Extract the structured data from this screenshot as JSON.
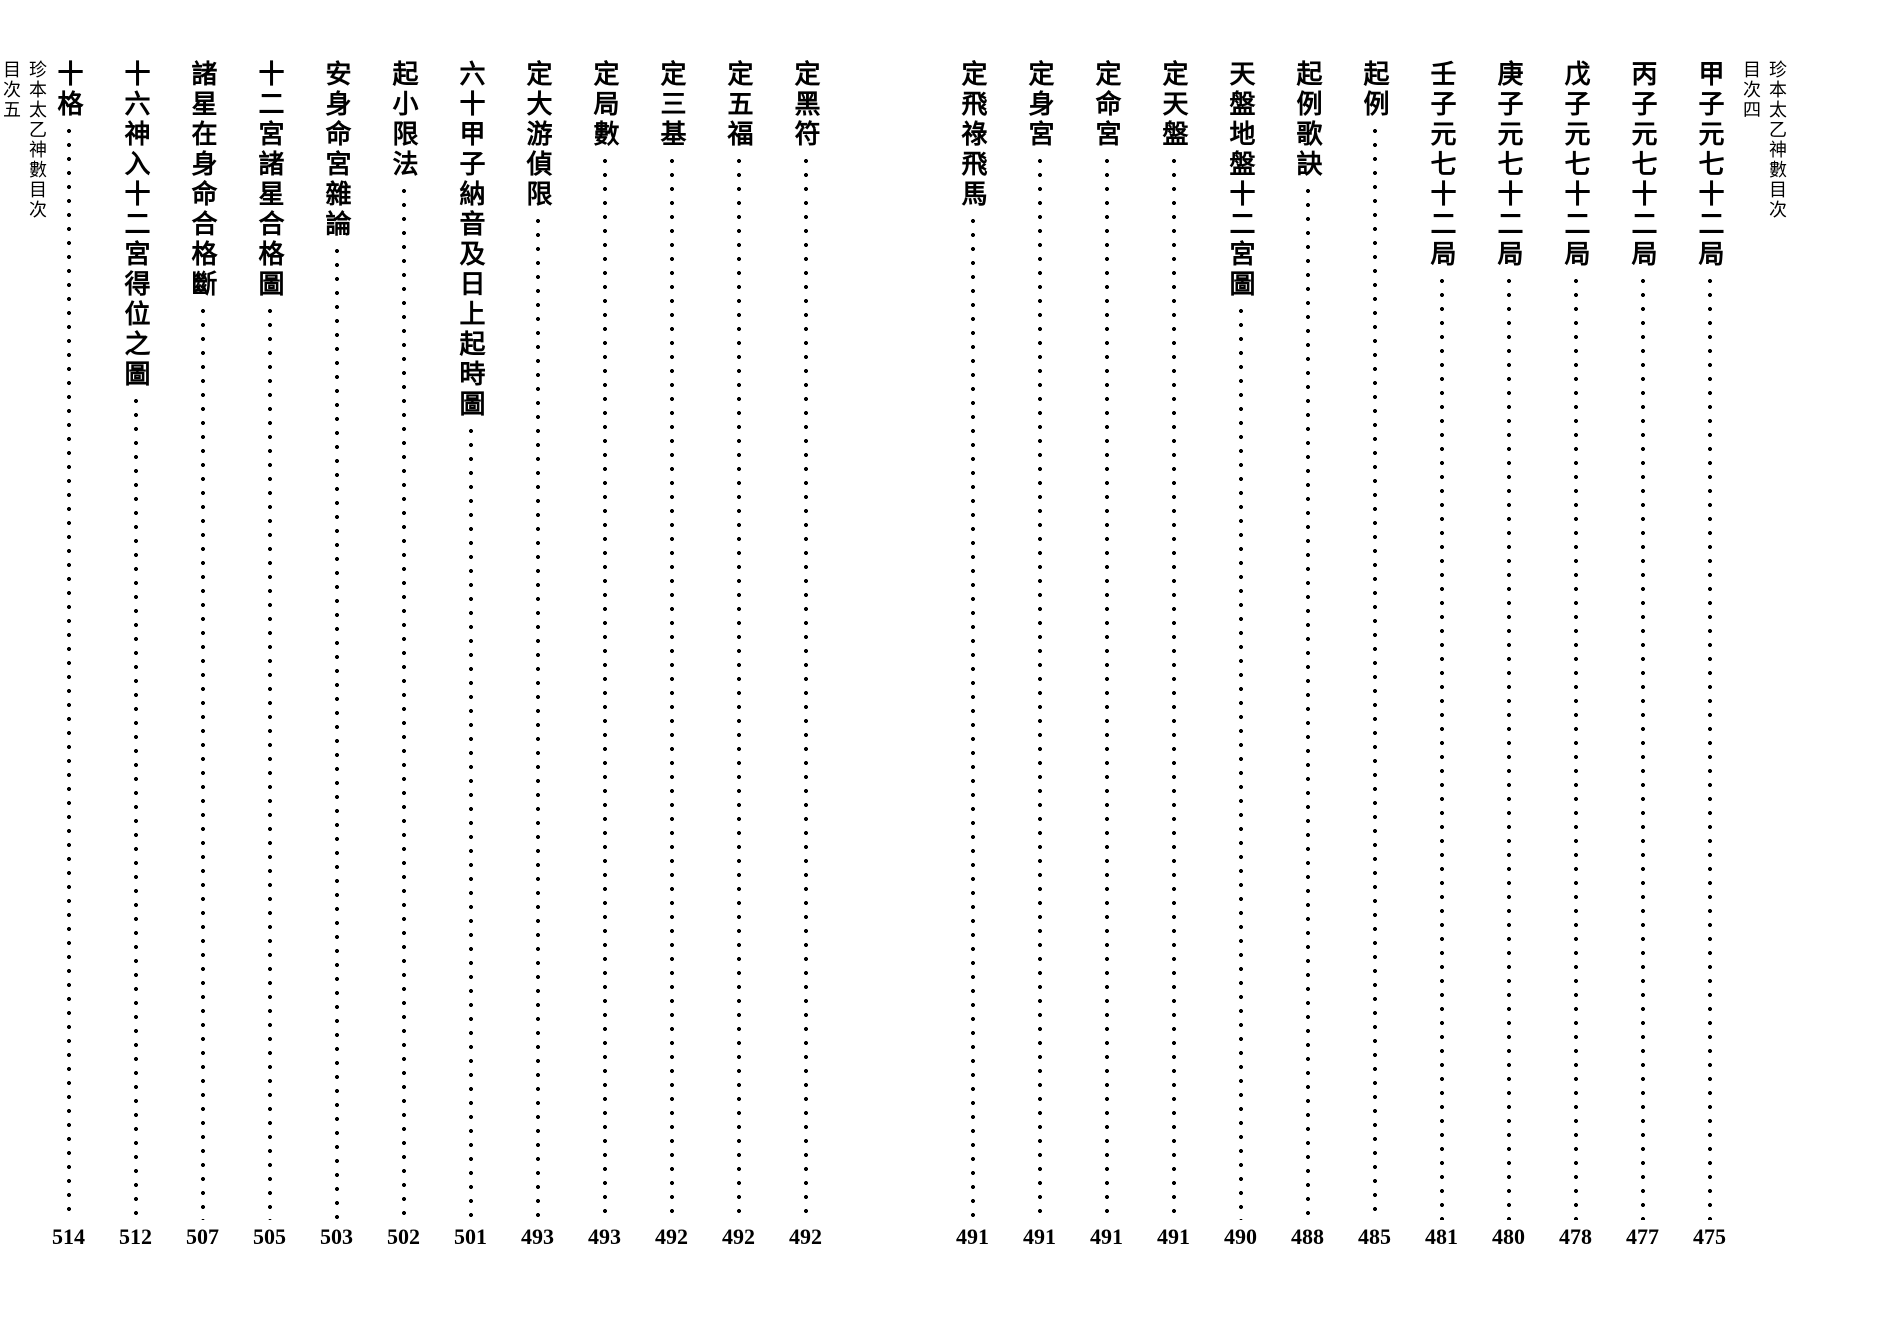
{
  "book_title": "珍本太乙神數目次",
  "right_page": {
    "header": "珍本太乙神數目次",
    "footer": "目次四",
    "entries": [
      {
        "title": "甲子元七十二局",
        "page": "475"
      },
      {
        "title": "丙子元七十二局",
        "page": "477"
      },
      {
        "title": "戊子元七十二局",
        "page": "478"
      },
      {
        "title": "庚子元七十二局",
        "page": "480"
      },
      {
        "title": "壬子元七十二局",
        "page": "481"
      },
      {
        "title": "起例",
        "page": "485"
      },
      {
        "title": "起例歌訣",
        "page": "488"
      },
      {
        "title": "天盤地盤十二宮圖",
        "page": "490"
      },
      {
        "title": "定天盤",
        "page": "491"
      },
      {
        "title": "定命宮",
        "page": "491"
      },
      {
        "title": "定身宮",
        "page": "491"
      },
      {
        "title": "定飛祿飛馬",
        "page": "491"
      }
    ]
  },
  "left_page": {
    "header": "珍本太乙神數目次",
    "footer": "目次五",
    "entries": [
      {
        "title": "定黑符",
        "page": "492"
      },
      {
        "title": "定五福",
        "page": "492"
      },
      {
        "title": "定三基",
        "page": "492"
      },
      {
        "title": "定局數",
        "page": "493"
      },
      {
        "title": "定大游偵限",
        "page": "493"
      },
      {
        "title": "六十甲子納音及日上起時圖",
        "page": "501"
      },
      {
        "title": "起小限法",
        "page": "502"
      },
      {
        "title": "安身命宮雜論",
        "page": "503"
      },
      {
        "title": "十二宮諸星合格圖",
        "page": "505"
      },
      {
        "title": "諸星在身命合格斷",
        "page": "507"
      },
      {
        "title": "十六神入十二宮得位之圖",
        "page": "512"
      },
      {
        "title": "十格",
        "page": "514"
      }
    ]
  },
  "colors": {
    "background": "#ffffff",
    "text": "#000000"
  },
  "typography": {
    "title_fontsize": 26,
    "header_fontsize": 18,
    "page_number_fontsize": 22
  }
}
